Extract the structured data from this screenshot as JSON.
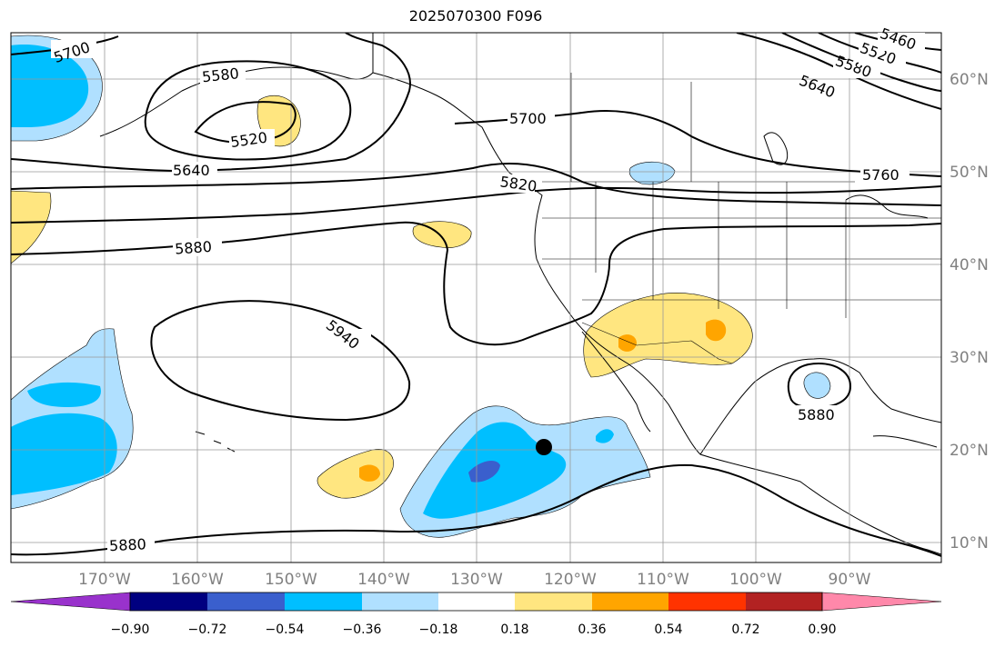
{
  "title": "2025070300 F096",
  "map": {
    "lon_ticks": [
      "170°W",
      "160°W",
      "150°W",
      "140°W",
      "130°W",
      "120°W",
      "110°W",
      "100°W",
      "90°W"
    ],
    "lat_ticks": [
      "60°N",
      "50°N",
      "40°N",
      "30°N",
      "20°N",
      "10°N"
    ],
    "contour_labels": [
      "5700",
      "5580",
      "5520",
      "5640",
      "5700",
      "5640",
      "5580",
      "5520",
      "5460",
      "5760",
      "5820",
      "5880",
      "5940",
      "5880",
      "5880"
    ],
    "marker": "storm-center-dot"
  },
  "colorbar": {
    "labels": [
      "−0.90",
      "−0.72",
      "−0.54",
      "−0.36",
      "−0.18",
      "0.18",
      "0.36",
      "0.54",
      "0.72",
      "0.90"
    ],
    "colors": [
      "#9932cc",
      "#000080",
      "#3a5fcd",
      "#00bfff",
      "#b0e0ff",
      "#ffffff",
      "#ffe680",
      "#ffa500",
      "#ff3300",
      "#b22222",
      "#ff88aa"
    ]
  }
}
